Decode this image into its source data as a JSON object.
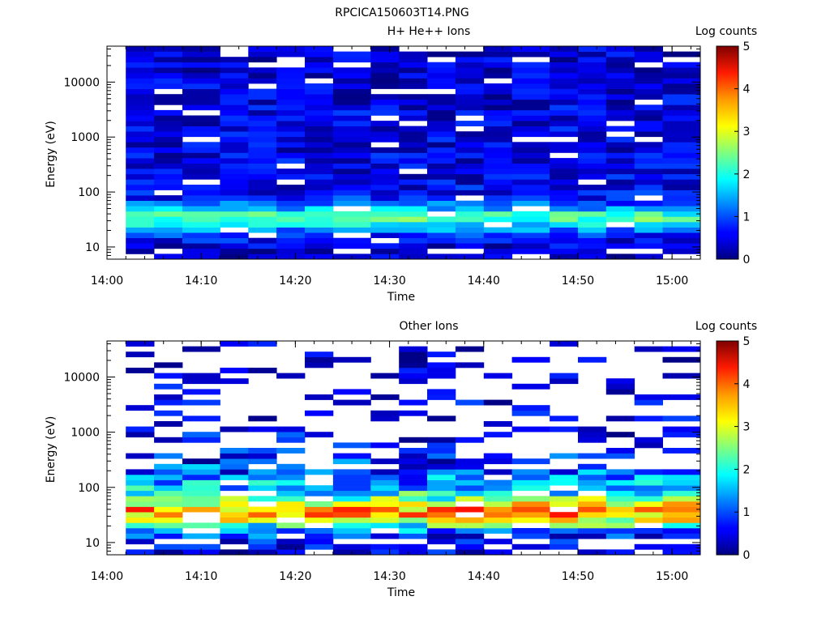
{
  "figure_title": "RPCICA150603T14.PNG",
  "chart_data": [
    {
      "type": "heatmap",
      "title": "H+ He++ Ions",
      "xlabel": "Time",
      "ylabel": "Energy (eV)",
      "xlim": [
        "14:00",
        "15:03"
      ],
      "ylim": [
        6,
        45000
      ],
      "yscale": "log",
      "x_ticks": [
        "14:00",
        "14:10",
        "14:20",
        "14:30",
        "14:40",
        "14:50",
        "15:00"
      ],
      "y_ticks": [
        "10",
        "100",
        "1000",
        "10000"
      ],
      "colorbar": {
        "label": "Log counts",
        "min": 0,
        "max": 5,
        "ticks": [
          "0",
          "1",
          "2",
          "3",
          "4",
          "5"
        ],
        "colormap": "jet"
      },
      "time_bins_start": [
        "14:02",
        "14:05",
        "14:08",
        "14:12",
        "14:15",
        "14:18",
        "14:21",
        "14:24",
        "14:28",
        "14:31",
        "14:34",
        "14:37",
        "14:40",
        "14:43",
        "14:47",
        "14:50",
        "14:53",
        "14:56",
        "14:59"
      ],
      "profile": {
        "description_levels": "log counts per energy band, approximate",
        "energy_bands_eV": [
          8,
          12,
          17,
          25,
          35,
          50,
          70,
          100,
          200,
          500,
          1000,
          3000,
          10000,
          30000
        ],
        "typical_log_counts": [
          0.3,
          0.5,
          0.8,
          1.8,
          2.4,
          1.5,
          0.8,
          0.6,
          0.5,
          0.5,
          0.5,
          0.5,
          0.4,
          0.4
        ]
      }
    },
    {
      "type": "heatmap",
      "title": "Other Ions",
      "xlabel": "Time",
      "ylabel": "Energy (eV)",
      "xlim": [
        "14:00",
        "15:03"
      ],
      "ylim": [
        6,
        45000
      ],
      "yscale": "log",
      "x_ticks": [
        "14:00",
        "14:10",
        "14:20",
        "14:30",
        "14:40",
        "14:50",
        "15:00"
      ],
      "y_ticks": [
        "10",
        "100",
        "1000",
        "10000"
      ],
      "colorbar": {
        "label": "Log counts",
        "min": 0,
        "max": 5,
        "ticks": [
          "0",
          "1",
          "2",
          "3",
          "4",
          "5"
        ],
        "colormap": "jet"
      },
      "time_bins_start": [
        "14:02",
        "14:05",
        "14:08",
        "14:12",
        "14:15",
        "14:18",
        "14:21",
        "14:24",
        "14:28",
        "14:31",
        "14:34",
        "14:37",
        "14:40",
        "14:43",
        "14:47",
        "14:50",
        "14:53",
        "14:56",
        "14:59"
      ],
      "profile": {
        "description_levels": "log counts per energy band, approximate",
        "energy_bands_eV": [
          8,
          12,
          17,
          25,
          35,
          50,
          70,
          100,
          200,
          500,
          1000,
          3000,
          10000,
          30000
        ],
        "typical_log_counts": [
          0.3,
          0.5,
          1.5,
          2.8,
          3.8,
          3.0,
          2.0,
          1.5,
          1.0,
          0.6,
          0.3,
          0.2,
          0.1,
          0.1
        ]
      }
    }
  ]
}
